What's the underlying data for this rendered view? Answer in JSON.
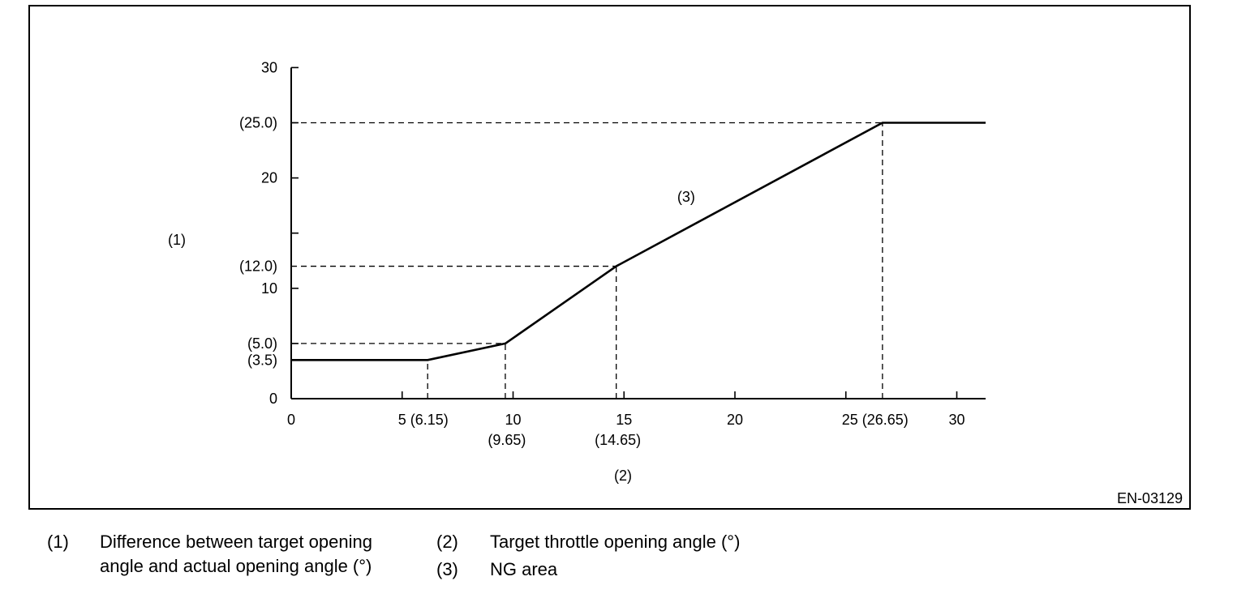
{
  "figure_id": "EN-03129",
  "chart_data": {
    "type": "line",
    "xlabel": "(2)",
    "ylabel": "(1)",
    "xlim": [
      0,
      31.3
    ],
    "ylim": [
      0,
      30
    ],
    "x_ticks": [
      {
        "value": 0,
        "label": "0"
      },
      {
        "value": 5,
        "label": "5 (6.15)"
      },
      {
        "value": 10,
        "label": "10"
      },
      {
        "value": 15,
        "label": "15"
      },
      {
        "value": 20,
        "label": "20"
      },
      {
        "value": 25,
        "label": "25 (26.65)"
      },
      {
        "value": 30,
        "label": "30"
      }
    ],
    "x_sublabels": [
      {
        "value": 9.65,
        "label": "(9.65)"
      },
      {
        "value": 14.65,
        "label": "(14.65)"
      }
    ],
    "y_ticks": [
      {
        "value": 0,
        "label": "0"
      },
      {
        "value": 5,
        "label": ""
      },
      {
        "value": 10,
        "label": "10"
      },
      {
        "value": 15,
        "label": ""
      },
      {
        "value": 20,
        "label": ""
      },
      {
        "value": 25,
        "label": ""
      },
      {
        "value": 30,
        "label": "30"
      }
    ],
    "y_extra_labels": [
      {
        "value": 3.5,
        "label": "(3.5)"
      },
      {
        "value": 5.0,
        "label": "(5.0)"
      },
      {
        "value": 12.0,
        "label": "(12.0)"
      },
      {
        "value": 20,
        "label": "20"
      },
      {
        "value": 25.0,
        "label": "(25.0)"
      }
    ],
    "series": [
      {
        "points": [
          [
            0,
            3.5
          ],
          [
            6.15,
            3.5
          ],
          [
            9.65,
            5.0
          ],
          [
            14.65,
            12.0
          ],
          [
            26.65,
            25.0
          ],
          [
            31.3,
            25.0
          ]
        ]
      }
    ],
    "reference_lines": [
      {
        "from": [
          0,
          25.0
        ],
        "to": [
          26.65,
          25.0
        ]
      },
      {
        "from": [
          0,
          12.0
        ],
        "to": [
          14.65,
          12.0
        ]
      },
      {
        "from": [
          0,
          5.0
        ],
        "to": [
          9.65,
          5.0
        ]
      },
      {
        "from": [
          6.15,
          0
        ],
        "to": [
          6.15,
          3.5
        ]
      },
      {
        "from": [
          9.65,
          0
        ],
        "to": [
          9.65,
          5.0
        ]
      },
      {
        "from": [
          14.65,
          0
        ],
        "to": [
          14.65,
          12.0
        ]
      },
      {
        "from": [
          26.65,
          0
        ],
        "to": [
          26.65,
          25.0
        ]
      }
    ],
    "annotations": [
      {
        "label": "(3)",
        "x": 17.8,
        "y": 18.3
      }
    ],
    "grid": false
  },
  "legend": [
    {
      "number": "(1)",
      "line1": "Difference between target opening",
      "line2": "angle and actual opening angle (°)"
    },
    {
      "number": "(2)",
      "line1": "Target throttle opening angle (°)"
    },
    {
      "number": "(3)",
      "line1": "NG area"
    }
  ]
}
